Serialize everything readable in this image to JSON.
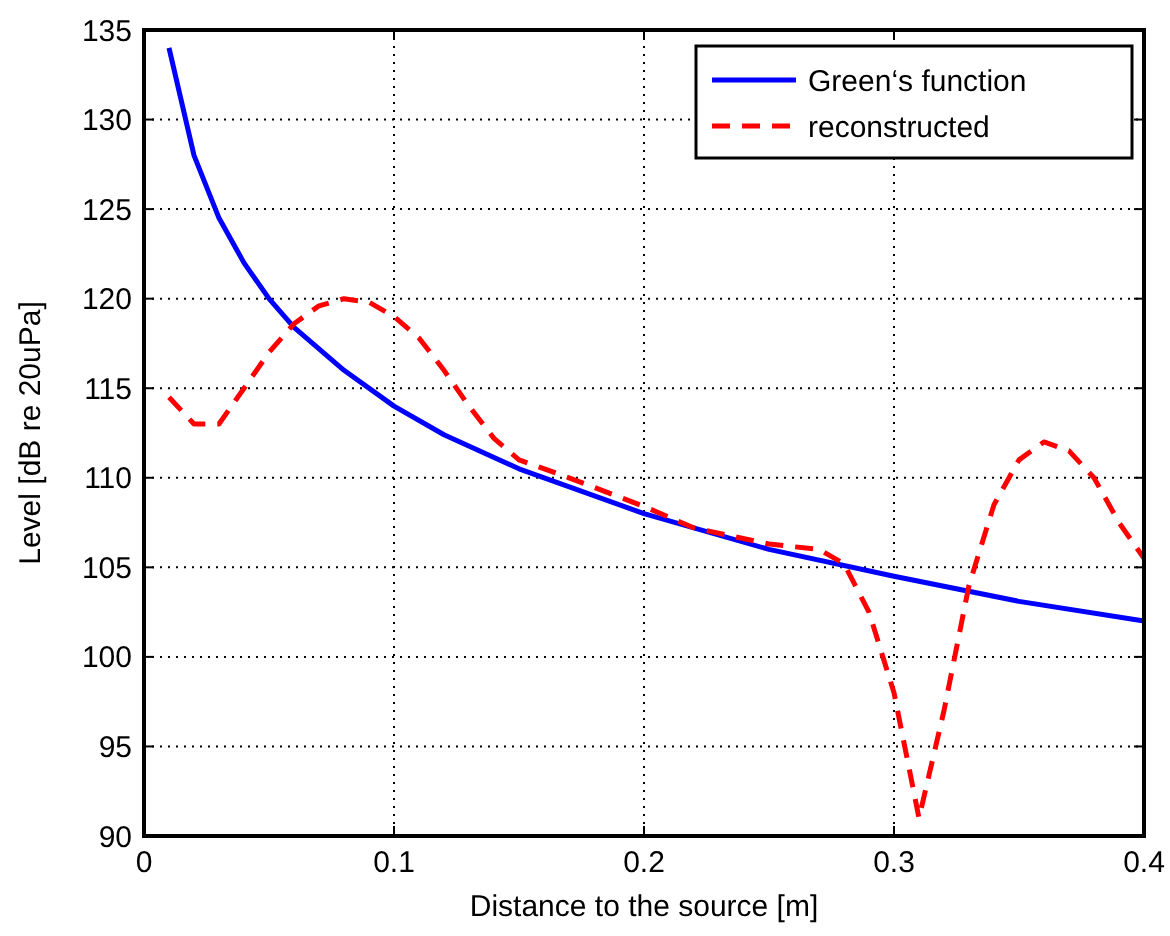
{
  "chart_data": {
    "type": "line",
    "xlabel": "Distance to the source [m]",
    "ylabel": "Level [dB re 20uPa]",
    "xlim": [
      0,
      0.4
    ],
    "xticks": [
      0,
      0.1,
      0.2,
      0.3,
      0.4
    ],
    "ylim": [
      90,
      135
    ],
    "yticks": [
      90,
      95,
      100,
      105,
      110,
      115,
      120,
      125,
      130,
      135
    ],
    "grid": true,
    "legend": "top right",
    "series": [
      {
        "name": "Green‘s function",
        "color": "#0000ff",
        "line_style": "solid",
        "x": [
          0.01,
          0.02,
          0.03,
          0.04,
          0.05,
          0.06,
          0.08,
          0.1,
          0.12,
          0.15,
          0.2,
          0.25,
          0.3,
          0.35,
          0.4
        ],
        "values": [
          134,
          128,
          124.5,
          122,
          120,
          118.4,
          116,
          114,
          112.4,
          110.5,
          108,
          106,
          104.5,
          103.1,
          102
        ]
      },
      {
        "name": "reconstructed",
        "color": "#ff0000",
        "line_style": "dashed",
        "x": [
          0.01,
          0.02,
          0.03,
          0.04,
          0.05,
          0.06,
          0.07,
          0.08,
          0.09,
          0.1,
          0.11,
          0.12,
          0.13,
          0.14,
          0.15,
          0.17,
          0.2,
          0.22,
          0.25,
          0.27,
          0.28,
          0.29,
          0.3,
          0.31,
          0.32,
          0.33,
          0.34,
          0.35,
          0.36,
          0.37,
          0.38,
          0.39,
          0.4
        ],
        "values": [
          114.5,
          113,
          113,
          115,
          117,
          118.6,
          119.6,
          120,
          119.8,
          119,
          117.8,
          116,
          114,
          112.2,
          111,
          110,
          108.4,
          107.2,
          106.3,
          106,
          105.2,
          102.5,
          98,
          91,
          97,
          104,
          108.5,
          111,
          112,
          111.5,
          110,
          107.5,
          105.5
        ]
      }
    ]
  }
}
